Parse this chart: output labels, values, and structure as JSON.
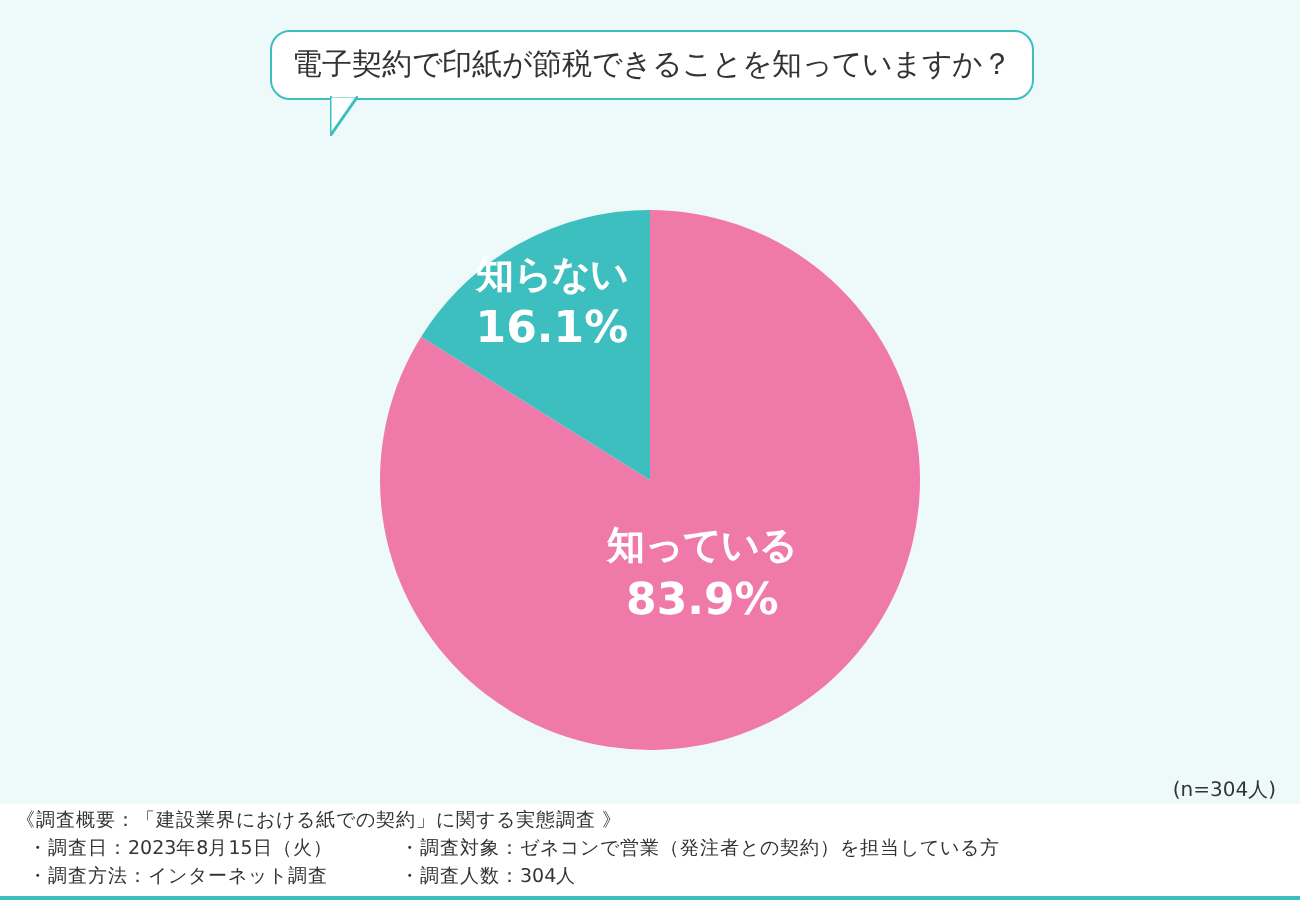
{
  "chart_data": {
    "type": "pie",
    "title": "電子契約で印紙が節税できることを知っていますか？",
    "categories": [
      "知っている",
      "知らない"
    ],
    "values": [
      83.9,
      16.1
    ],
    "value_labels": [
      "83.9%",
      "16.1%"
    ],
    "colors": [
      "#ef7aaa",
      "#3dbfc0"
    ],
    "legend": false,
    "annotations": [
      "(n=304人)",
      "《調査概要：「建設業界における紙での契約」に関する実態調査 》",
      "・調査日：2023年8月15日（火）",
      "・調査対象：ゼネコンで営業（発注者との契約）を担当している方",
      "・調査方法：インターネット調査",
      "・調査人数：304人"
    ]
  }
}
